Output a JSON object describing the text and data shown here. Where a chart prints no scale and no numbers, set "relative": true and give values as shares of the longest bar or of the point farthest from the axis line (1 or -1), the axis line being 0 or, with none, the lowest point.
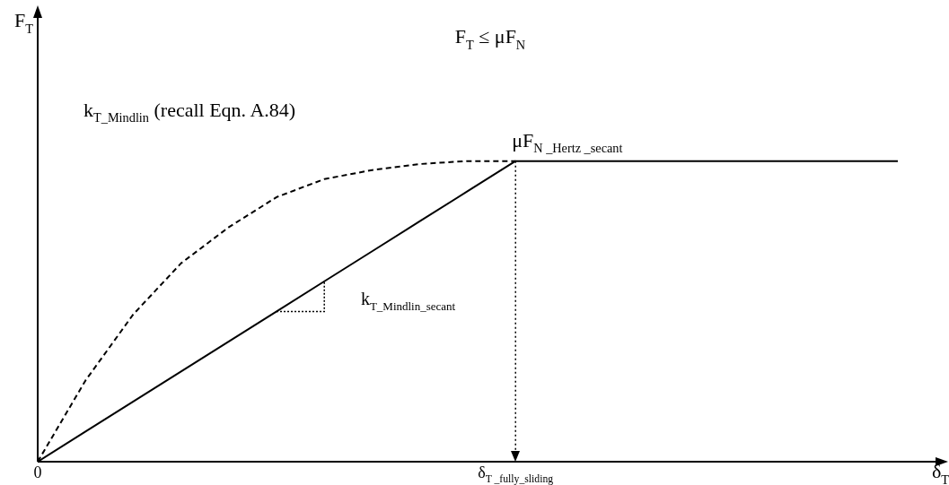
{
  "chart_data": {
    "type": "line",
    "title": "F$_{T}$ ≤ μF$_{N}$",
    "xlabel": "δ$_{T}$",
    "relative": true,
    "categories": [
      "0",
      null,
      null,
      null,
      null,
      null,
      null,
      null,
      null,
      null,
      "δ$_{T _fully_sliding}$",
      null,
      null,
      null,
      null,
      null,
      null,
      null,
      null
    ],
    "series": [
      {
        "color": "#000000",
        "line_style": "dashed",
        "values": [
          0,
          0.27,
          0.49,
          0.66,
          0.78,
          0.88,
          0.94,
          0.97,
          0.99,
          1,
          1,
          null,
          null,
          null,
          null,
          null,
          null,
          null,
          null
        ]
      },
      {
        "color": "#000000",
        "line_style": "solid",
        "values": [
          0,
          0.1,
          0.2,
          0.3,
          0.4,
          0.5,
          0.6,
          0.7,
          0.8,
          0.9,
          1,
          1,
          1,
          1,
          1,
          1,
          1,
          1,
          1
        ]
      }
    ],
    "marker": "none",
    "ref_lines": [
      {
        "axis": "x",
        "value": "δ$_{T _fully_sliding}$",
        "line_style": "dotted",
        "color": "#000000"
      }
    ],
    "annotations": [
      "k$_{T_Mindlin}$ (recall Eqn. A.84)",
      "μF$_{N _Hertz _secant}$",
      "k$_{T_Mindlin_secant}$",
      "F$_{T}$"
    ]
  }
}
